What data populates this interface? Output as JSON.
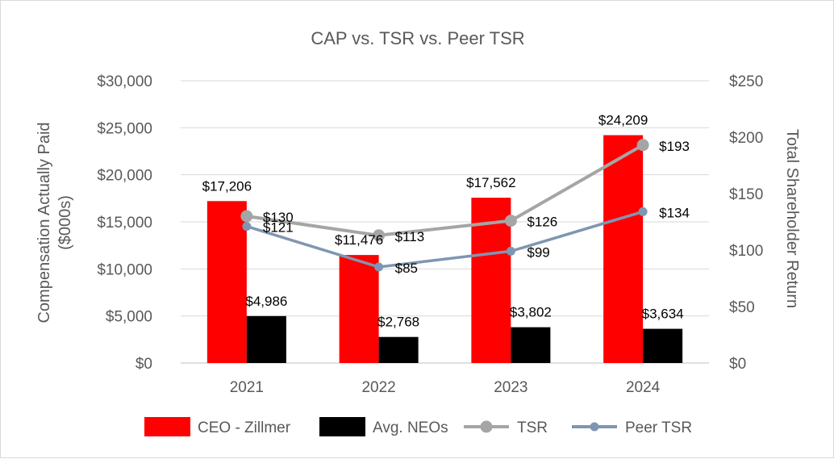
{
  "chart_data": {
    "type": "bar",
    "title": "CAP vs. TSR vs. Peer TSR",
    "categories": [
      "2021",
      "2022",
      "2023",
      "2024"
    ],
    "y_left": {
      "label": "Compensation Actually Paid ($000s)",
      "label_lines": [
        "Compensation Actually Paid",
        "($000s)"
      ],
      "ylim": [
        0,
        30000
      ],
      "ticks": [
        0,
        5000,
        10000,
        15000,
        20000,
        25000,
        30000
      ],
      "tick_labels": [
        "$0",
        "$5,000",
        "$10,000",
        "$15,000",
        "$20,000",
        "$25,000",
        "$30,000"
      ]
    },
    "y_right": {
      "label": "Total Shareholder Return",
      "ylim": [
        0,
        250
      ],
      "ticks": [
        0,
        50,
        100,
        150,
        200,
        250
      ],
      "tick_labels": [
        "$0",
        "$50",
        "$100",
        "$150",
        "$200",
        "$250"
      ]
    },
    "grid": true,
    "legend_position": "bottom",
    "series": [
      {
        "name": "CEO - Zillmer",
        "kind": "bar",
        "axis": "left",
        "color": "#ff0000",
        "values": [
          17206,
          11476,
          17562,
          24209
        ],
        "labels": [
          "$17,206",
          "$11,476",
          "$17,562",
          "$24,209"
        ]
      },
      {
        "name": "Avg. NEOs",
        "kind": "bar",
        "axis": "left",
        "color": "#000000",
        "values": [
          4986,
          2768,
          3802,
          3634
        ],
        "labels": [
          "$4,986",
          "$2,768",
          "$3,802",
          "$3,634"
        ]
      },
      {
        "name": "TSR",
        "kind": "line",
        "axis": "right",
        "color": "#a5a5a5",
        "values": [
          130,
          113,
          126,
          193
        ],
        "labels": [
          "$130",
          "$113",
          "$126",
          "$193"
        ]
      },
      {
        "name": "Peer TSR",
        "kind": "line",
        "axis": "right",
        "color": "#7f96b2",
        "values": [
          121,
          85,
          99,
          134
        ],
        "labels": [
          "$121",
          "$85",
          "$99",
          "$134"
        ]
      }
    ]
  }
}
